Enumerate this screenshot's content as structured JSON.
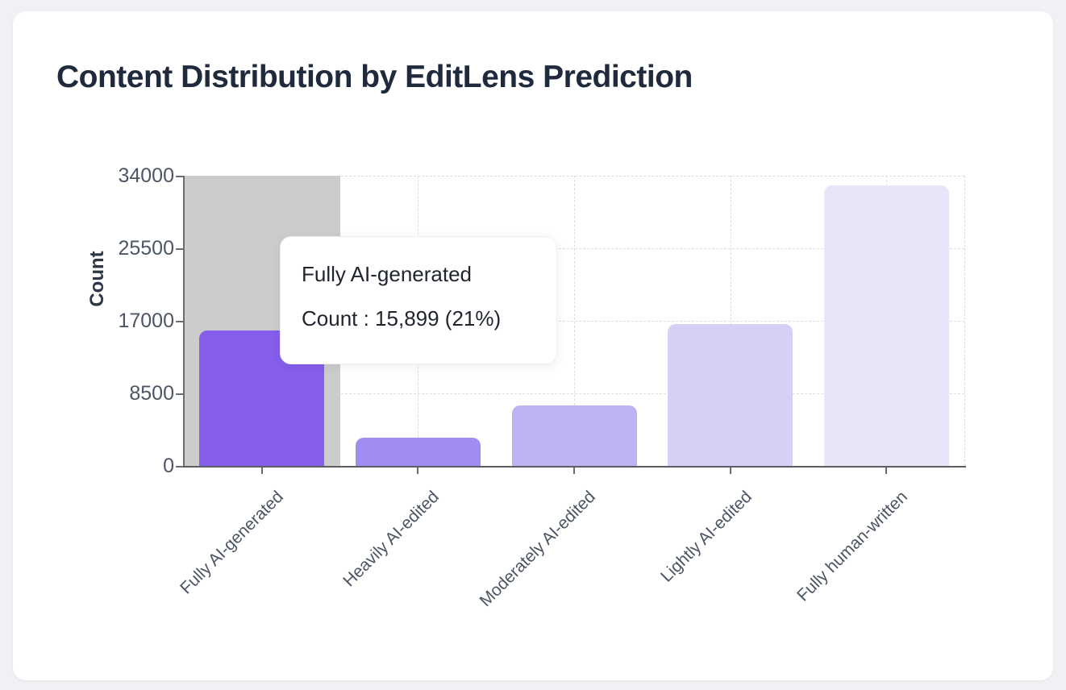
{
  "page": {
    "title": "Content Distribution by EditLens Prediction"
  },
  "chart_data": {
    "type": "bar",
    "title": "Content Distribution by EditLens Prediction",
    "xlabel": "",
    "ylabel": "Count",
    "categories": [
      "Fully AI-generated",
      "Heavily AI-edited",
      "Moderately AI-edited",
      "Lightly AI-edited",
      "Fully human-written"
    ],
    "values": [
      15899,
      3300,
      7100,
      16600,
      32900
    ],
    "yticks": [
      0,
      8500,
      17000,
      25500,
      34000
    ],
    "ylim": [
      0,
      34000
    ],
    "grid": true,
    "legend": false,
    "bar_colors": [
      "#855EEB",
      "#A18CF0",
      "#BFB2F2",
      "#D7CFF6",
      "#E8E5F9"
    ],
    "highlight_color": "#CCCCCC",
    "highlighted_index": 0
  },
  "tooltip": {
    "title": "Fully AI-generated",
    "value_line": "Count : 15,899 (21%)"
  }
}
